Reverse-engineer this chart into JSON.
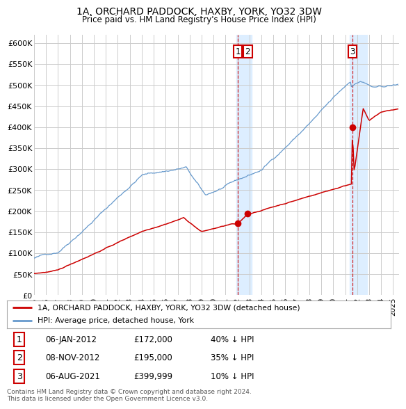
{
  "title1": "1A, ORCHARD PADDOCK, HAXBY, YORK, YO32 3DW",
  "title2": "Price paid vs. HM Land Registry's House Price Index (HPI)",
  "ylim": [
    0,
    620000
  ],
  "xlim_start": 1995.0,
  "xlim_end": 2025.5,
  "yticks": [
    0,
    50000,
    100000,
    150000,
    200000,
    250000,
    300000,
    350000,
    400000,
    450000,
    500000,
    550000,
    600000
  ],
  "ytick_labels": [
    "£0",
    "£50K",
    "£100K",
    "£150K",
    "£200K",
    "£250K",
    "£300K",
    "£350K",
    "£400K",
    "£450K",
    "£500K",
    "£550K",
    "£600K"
  ],
  "xtick_years": [
    1995,
    1996,
    1997,
    1998,
    1999,
    2000,
    2001,
    2002,
    2003,
    2004,
    2005,
    2006,
    2007,
    2008,
    2009,
    2010,
    2011,
    2012,
    2013,
    2014,
    2015,
    2016,
    2017,
    2018,
    2019,
    2020,
    2021,
    2022,
    2023,
    2024,
    2025
  ],
  "sale1_x": 2012.02,
  "sale1_y": 172000,
  "sale2_x": 2012.85,
  "sale2_y": 195000,
  "sale3_x": 2021.6,
  "sale3_y": 399999,
  "shade1_xmin": 2011.9,
  "shade1_xmax": 2013.2,
  "shade2_xmin": 2021.4,
  "shade2_xmax": 2022.8,
  "vline1_x": 2012.02,
  "vline2_x": 2021.6,
  "legend_line1": "1A, ORCHARD PADDOCK, HAXBY, YORK, YO32 3DW (detached house)",
  "legend_line2": "HPI: Average price, detached house, York",
  "table_data": [
    [
      "1",
      "06-JAN-2012",
      "£172,000",
      "40% ↓ HPI"
    ],
    [
      "2",
      "08-NOV-2012",
      "£195,000",
      "35% ↓ HPI"
    ],
    [
      "3",
      "06-AUG-2021",
      "£399,999",
      "10% ↓ HPI"
    ]
  ],
  "footnote1": "Contains HM Land Registry data © Crown copyright and database right 2024.",
  "footnote2": "This data is licensed under the Open Government Licence v3.0.",
  "red_color": "#cc0000",
  "blue_color": "#6699cc",
  "shade_color": "#ddeeff",
  "grid_color": "#cccccc",
  "bg_color": "#ffffff"
}
